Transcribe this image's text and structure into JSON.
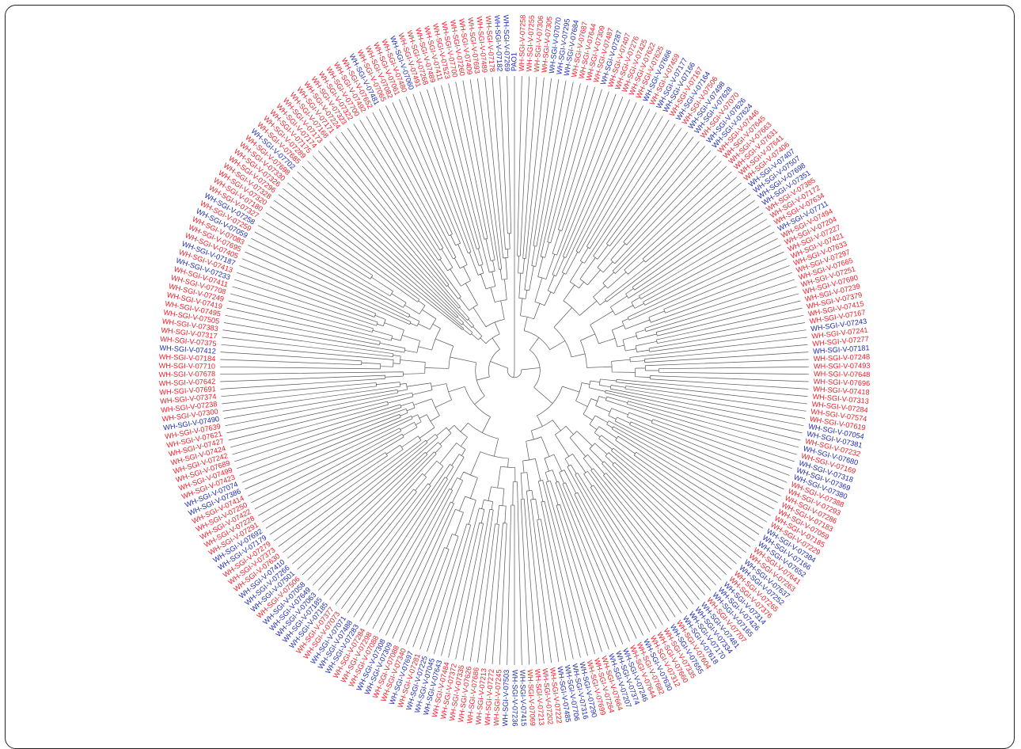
{
  "tree": {
    "root_label": "PAO1",
    "colors": {
      "red_group": "#e8202a",
      "blue_group": "#1f2ab0",
      "branch": "#555555",
      "frame": "#222222"
    },
    "leaves": [
      {
        "label": "PAO1",
        "group": "blue"
      },
      {
        "label": "WH-SGI-V-07258",
        "group": "red"
      },
      {
        "label": "WH-SGI-V-07255",
        "group": "red"
      },
      {
        "label": "WH-SGI-V-07306",
        "group": "red"
      },
      {
        "label": "WH-SGI-V-07305",
        "group": "red"
      },
      {
        "label": "WH-SGI-V-07070",
        "group": "blue"
      },
      {
        "label": "WH-SGI-V-07295",
        "group": "blue"
      },
      {
        "label": "WH-SGI-V-07684",
        "group": "blue"
      },
      {
        "label": "WH-SGI-V-07687",
        "group": "red"
      },
      {
        "label": "WH-SGI-V-07644",
        "group": "red"
      },
      {
        "label": "WH-SGI-V-07309",
        "group": "red"
      },
      {
        "label": "WH-SGI-V-07487",
        "group": "red"
      },
      {
        "label": "WH-SGI-V-07287",
        "group": "blue"
      },
      {
        "label": "WH-SGI-V-07407",
        "group": "red"
      },
      {
        "label": "WH-SGI-V-07276",
        "group": "red"
      },
      {
        "label": "WH-SGI-V-07425",
        "group": "red"
      },
      {
        "label": "WH-SGI-V-07622",
        "group": "red"
      },
      {
        "label": "WH-SGI-V-07625",
        "group": "red"
      },
      {
        "label": "WH-SGI-V-07666",
        "group": "blue"
      },
      {
        "label": "WH-SGI-V-07459",
        "group": "red"
      },
      {
        "label": "WH-SGI-V-07177",
        "group": "blue"
      },
      {
        "label": "WH-SGI-V-07166",
        "group": "blue"
      },
      {
        "label": "WH-SGI-V-07167",
        "group": "red"
      },
      {
        "label": "WH-SGI-V-07164",
        "group": "blue"
      },
      {
        "label": "WH-SGI-V-07506",
        "group": "red"
      },
      {
        "label": "WH-SGI-V-07498",
        "group": "blue"
      },
      {
        "label": "WH-SGI-V-07628",
        "group": "blue"
      },
      {
        "label": "WH-SGI-V-07070",
        "group": "red"
      },
      {
        "label": "WH-SGI-V-07626",
        "group": "blue"
      },
      {
        "label": "WH-SGI-V-07624",
        "group": "blue"
      },
      {
        "label": "WH-SGI-V-07446",
        "group": "red"
      },
      {
        "label": "WH-SGI-V-07645",
        "group": "red"
      },
      {
        "label": "WH-SGI-V-07663",
        "group": "red"
      },
      {
        "label": "WH-SGI-V-07631",
        "group": "red"
      },
      {
        "label": "WH-SGI-V-07641",
        "group": "red"
      },
      {
        "label": "WH-SGI-V-07406",
        "group": "red"
      },
      {
        "label": "WH-SGI-V-07407",
        "group": "blue"
      },
      {
        "label": "WH-SGI-V-07507",
        "group": "blue"
      },
      {
        "label": "WH-SGI-V-07698",
        "group": "blue"
      },
      {
        "label": "WH-SGI-V-07351",
        "group": "blue"
      },
      {
        "label": "WH-SGI-V-07385",
        "group": "red"
      },
      {
        "label": "WH-SGI-V-07172",
        "group": "red"
      },
      {
        "label": "WH-SGI-V-07634",
        "group": "red"
      },
      {
        "label": "WH-SGI-V-07711",
        "group": "blue"
      },
      {
        "label": "WH-SGI-V-07494",
        "group": "red"
      },
      {
        "label": "WH-SGI-V-07204",
        "group": "red"
      },
      {
        "label": "WH-SGI-V-07227",
        "group": "red"
      },
      {
        "label": "WH-SGI-V-07421",
        "group": "red"
      },
      {
        "label": "WH-SGI-V-07633",
        "group": "red"
      },
      {
        "label": "WH-SGI-V-07297",
        "group": "red"
      },
      {
        "label": "WH-SGI-V-07665",
        "group": "red"
      },
      {
        "label": "WH-SGI-V-07251",
        "group": "red"
      },
      {
        "label": "WH-SGI-V-07690",
        "group": "red"
      },
      {
        "label": "WH-SGI-V-07239",
        "group": "red"
      },
      {
        "label": "WH-SGI-V-07379",
        "group": "red"
      },
      {
        "label": "WH-SGI-V-07415",
        "group": "red"
      },
      {
        "label": "WH-SGI-V-07167",
        "group": "red"
      },
      {
        "label": "WH-SGI-V-07243",
        "group": "blue"
      },
      {
        "label": "WH-SGI-V-07241",
        "group": "red"
      },
      {
        "label": "WH-SGI-V-07277",
        "group": "red"
      },
      {
        "label": "WH-SGI-V-07181",
        "group": "blue"
      },
      {
        "label": "WH-SGI-V-07248",
        "group": "red"
      },
      {
        "label": "WH-SGI-V-07493",
        "group": "red"
      },
      {
        "label": "WH-SGI-V-07648",
        "group": "red"
      },
      {
        "label": "WH-SGI-V-07696",
        "group": "red"
      },
      {
        "label": "WH-SGI-V-07418",
        "group": "red"
      },
      {
        "label": "WH-SGI-V-07313",
        "group": "red"
      },
      {
        "label": "WH-SGI-V-07284",
        "group": "red"
      },
      {
        "label": "WH-SGI-V-07574",
        "group": "red"
      },
      {
        "label": "WH-SGI-V-07619",
        "group": "red"
      },
      {
        "label": "WH-SGI-V-07054",
        "group": "blue"
      },
      {
        "label": "WH-SGI-V-07381",
        "group": "blue"
      },
      {
        "label": "WH-SGI-V-07232",
        "group": "red"
      },
      {
        "label": "WH-SGI-V-07680",
        "group": "blue"
      },
      {
        "label": "WH-SGI-V-07169",
        "group": "red"
      },
      {
        "label": "WH-SGI-V-07318",
        "group": "blue"
      },
      {
        "label": "WH-SGI-V-07369",
        "group": "blue"
      },
      {
        "label": "WH-SGI-V-07380",
        "group": "blue"
      },
      {
        "label": "WH-SGI-V-07388",
        "group": "red"
      },
      {
        "label": "WH-SGI-V-07293",
        "group": "red"
      },
      {
        "label": "WH-SGI-V-07286",
        "group": "red"
      },
      {
        "label": "WH-SGI-V-07183",
        "group": "red"
      },
      {
        "label": "WH-SGI-V-07059",
        "group": "red"
      },
      {
        "label": "WH-SGI-V-07185",
        "group": "red"
      },
      {
        "label": "WH-SGI-V-07229",
        "group": "red"
      },
      {
        "label": "WH-SGI-V-07384",
        "group": "blue"
      },
      {
        "label": "WH-SGI-V-07166",
        "group": "blue"
      },
      {
        "label": "WH-SGI-V-07652",
        "group": "blue"
      },
      {
        "label": "WH-SGI-V-07641",
        "group": "red"
      },
      {
        "label": "WH-SGI-V-07263",
        "group": "red"
      },
      {
        "label": "WH-SGI-V-07637",
        "group": "blue"
      },
      {
        "label": "WH-SGI-V-07252",
        "group": "blue"
      },
      {
        "label": "WH-SGI-V-07265",
        "group": "red"
      },
      {
        "label": "WH-SGI-V-07376",
        "group": "red"
      },
      {
        "label": "WH-SGI-V-07314",
        "group": "blue"
      },
      {
        "label": "WH-SGI-V-07426",
        "group": "blue"
      },
      {
        "label": "WH-SGI-V-07165",
        "group": "blue"
      },
      {
        "label": "WH-SGI-V-07707",
        "group": "red"
      },
      {
        "label": "WH-SGI-V-07481",
        "group": "blue"
      },
      {
        "label": "WH-SGI-V-07334",
        "group": "blue"
      },
      {
        "label": "WH-SGI-V-07170",
        "group": "blue"
      },
      {
        "label": "WH-SGI-V-07618",
        "group": "blue"
      },
      {
        "label": "WH-SGI-V-07604",
        "group": "red"
      },
      {
        "label": "WH-SGI-V-07655",
        "group": "blue"
      },
      {
        "label": "WH-SGI-V-07335",
        "group": "red"
      },
      {
        "label": "WH-SGI-V-07660",
        "group": "red"
      },
      {
        "label": "WH-SGI-V-07312",
        "group": "red"
      },
      {
        "label": "WH-SGI-V-07630",
        "group": "blue"
      },
      {
        "label": "WH-SGI-V-07682",
        "group": "red"
      },
      {
        "label": "WH-SGI-V-07644",
        "group": "red"
      },
      {
        "label": "WH-SGI-V-07246",
        "group": "blue"
      },
      {
        "label": "WH-SGI-V-07374",
        "group": "blue"
      },
      {
        "label": "WH-SGI-V-07207",
        "group": "blue"
      },
      {
        "label": "WH-SGI-V-07664",
        "group": "red"
      },
      {
        "label": "WH-SGI-V-07264",
        "group": "red"
      },
      {
        "label": "WH-SGI-V-07699",
        "group": "red"
      },
      {
        "label": "WH-SGI-V-07290",
        "group": "blue"
      },
      {
        "label": "WH-SGI-V-07316",
        "group": "blue"
      },
      {
        "label": "WH-SGI-V-07706",
        "group": "blue"
      },
      {
        "label": "WH-SGI-V-07485",
        "group": "blue"
      },
      {
        "label": "WH-SGI-V-07222",
        "group": "red"
      },
      {
        "label": "WH-SGI-V-07202",
        "group": "red"
      },
      {
        "label": "WH-SGI-V-07213",
        "group": "red"
      },
      {
        "label": "WH-SGI-V-07069",
        "group": "red"
      },
      {
        "label": "WH-SGI-V-07415",
        "group": "blue"
      },
      {
        "label": "WH-SGI-V-07236",
        "group": "blue"
      },
      {
        "label": "WH-SGI-V-07503",
        "group": "blue"
      },
      {
        "label": "WH-SGI-V-07245",
        "group": "red"
      },
      {
        "label": "WH-SGI-V-07272",
        "group": "red"
      },
      {
        "label": "WH-SGI-V-07213",
        "group": "red"
      },
      {
        "label": "WH-SGI-V-07686",
        "group": "red"
      },
      {
        "label": "WH-SGI-V-07626",
        "group": "red"
      },
      {
        "label": "WH-SGI-V-07335",
        "group": "red"
      },
      {
        "label": "WH-SGI-V-07372",
        "group": "red"
      },
      {
        "label": "WH-SGI-V-07484",
        "group": "red"
      },
      {
        "label": "WH-SGI-V-07643",
        "group": "blue"
      },
      {
        "label": "WH-SGI-V-07045",
        "group": "blue"
      },
      {
        "label": "WH-SGI-V-07225",
        "group": "blue"
      },
      {
        "label": "WH-SGI-V-07281",
        "group": "red"
      },
      {
        "label": "WH-SGI-V-07697",
        "group": "blue"
      },
      {
        "label": "WH-SGI-V-07340",
        "group": "red"
      },
      {
        "label": "WH-SGI-V-07088",
        "group": "red"
      },
      {
        "label": "WH-SGI-V-07309",
        "group": "blue"
      },
      {
        "label": "WH-SGI-V-07308",
        "group": "blue"
      },
      {
        "label": "WH-SGI-V-07088",
        "group": "red"
      },
      {
        "label": "WH-SGI-V-07298",
        "group": "red"
      },
      {
        "label": "WH-SGI-V-07284",
        "group": "red"
      },
      {
        "label": "WH-SGI-V-07283",
        "group": "blue"
      },
      {
        "label": "WH-SGI-V-07488",
        "group": "blue"
      },
      {
        "label": "WH-SGI-V-07071",
        "group": "blue"
      },
      {
        "label": "WH-SGI-V-07073",
        "group": "red"
      },
      {
        "label": "WH-SGI-V-07377",
        "group": "red"
      },
      {
        "label": "WH-SGI-V-07185",
        "group": "blue"
      },
      {
        "label": "WH-SGI-V-07185",
        "group": "blue"
      },
      {
        "label": "WH-SGI-V-07063",
        "group": "blue"
      },
      {
        "label": "WH-SGI-V-07649",
        "group": "blue"
      },
      {
        "label": "WH-SGI-V-07058",
        "group": "blue"
      },
      {
        "label": "WH-SGI-V-07506",
        "group": "red"
      },
      {
        "label": "WH-SGI-V-07501",
        "group": "blue"
      },
      {
        "label": "WH-SGI-V-07266",
        "group": "blue"
      },
      {
        "label": "WH-SGI-V-07410",
        "group": "blue"
      },
      {
        "label": "WH-SGI-V-07630",
        "group": "red"
      },
      {
        "label": "WH-SGI-V-07373",
        "group": "red"
      },
      {
        "label": "WH-SGI-V-07279",
        "group": "red"
      },
      {
        "label": "WH-SGI-V-07179",
        "group": "blue"
      },
      {
        "label": "WH-SGI-V-07692",
        "group": "blue"
      },
      {
        "label": "WH-SGI-V-07291",
        "group": "red"
      },
      {
        "label": "WH-SGI-V-07228",
        "group": "red"
      },
      {
        "label": "WH-SGI-V-07422",
        "group": "red"
      },
      {
        "label": "WH-SGI-V-07250",
        "group": "red"
      },
      {
        "label": "WH-SGI-V-07414",
        "group": "red"
      },
      {
        "label": "WH-SGI-V-07386",
        "group": "blue"
      },
      {
        "label": "WH-SGI-V-07074",
        "group": "blue"
      },
      {
        "label": "WH-SGI-V-07423",
        "group": "red"
      },
      {
        "label": "WH-SGI-V-07499",
        "group": "red"
      },
      {
        "label": "WH-SGI-V-07689",
        "group": "red"
      },
      {
        "label": "WH-SGI-V-07242",
        "group": "red"
      },
      {
        "label": "WH-SGI-V-07424",
        "group": "red"
      },
      {
        "label": "WH-SGI-V-07427",
        "group": "red"
      },
      {
        "label": "WH-SGI-V-07621",
        "group": "red"
      },
      {
        "label": "WH-SGI-V-07639",
        "group": "red"
      },
      {
        "label": "WH-SGI-V-07490",
        "group": "blue"
      },
      {
        "label": "WH-SGI-V-07300",
        "group": "red"
      },
      {
        "label": "WH-SGI-V-07238",
        "group": "red"
      },
      {
        "label": "WH-SGI-V-07374",
        "group": "red"
      },
      {
        "label": "WH-SGI-V-07691",
        "group": "red"
      },
      {
        "label": "WH-SGI-V-07642",
        "group": "red"
      },
      {
        "label": "WH-SGI-V-07678",
        "group": "red"
      },
      {
        "label": "WH-SGI-V-07710",
        "group": "red"
      },
      {
        "label": "WH-SGI-V-07184",
        "group": "red"
      },
      {
        "label": "WH-SGI-V-07412",
        "group": "blue"
      },
      {
        "label": "WH-SGI-V-07375",
        "group": "red"
      },
      {
        "label": "WH-SGI-V-07317",
        "group": "red"
      },
      {
        "label": "WH-SGI-V-07383",
        "group": "red"
      },
      {
        "label": "WH-SGI-V-07505",
        "group": "red"
      },
      {
        "label": "WH-SGI-V-07495",
        "group": "red"
      },
      {
        "label": "WH-SGI-V-07419",
        "group": "red"
      },
      {
        "label": "WH-SGI-V-07249",
        "group": "red"
      },
      {
        "label": "WH-SGI-V-07708",
        "group": "red"
      },
      {
        "label": "WH-SGI-V-07411",
        "group": "red"
      },
      {
        "label": "WH-SGI-V-07233",
        "group": "blue"
      },
      {
        "label": "WH-SGI-V-07413",
        "group": "red"
      },
      {
        "label": "WH-SGI-V-07187",
        "group": "blue"
      },
      {
        "label": "WH-SGI-V-07405",
        "group": "red"
      },
      {
        "label": "WH-SGI-V-07695",
        "group": "red"
      },
      {
        "label": "WH-SGI-V-07083",
        "group": "red"
      },
      {
        "label": "WH-SGI-V-07059",
        "group": "blue"
      },
      {
        "label": "WH-SGI-V-07259",
        "group": "red"
      },
      {
        "label": "WH-SGI-V-07258",
        "group": "blue"
      },
      {
        "label": "WH-SGI-V-07327",
        "group": "red"
      },
      {
        "label": "WH-SGI-V-07180",
        "group": "red"
      },
      {
        "label": "WH-SGI-V-07320",
        "group": "red"
      },
      {
        "label": "WH-SGI-V-07328",
        "group": "red"
      },
      {
        "label": "WH-SGI-V-07296",
        "group": "red"
      },
      {
        "label": "WH-SGI-V-07326",
        "group": "red"
      },
      {
        "label": "WH-SGI-V-07330",
        "group": "red"
      },
      {
        "label": "WH-SGI-V-07698",
        "group": "red"
      },
      {
        "label": "WH-SGI-V-07702",
        "group": "blue"
      },
      {
        "label": "WH-SGI-V-07685",
        "group": "red"
      },
      {
        "label": "WH-SGI-V-07289",
        "group": "red"
      },
      {
        "label": "WH-SGI-V-07175",
        "group": "red"
      },
      {
        "label": "WH-SGI-V-07174",
        "group": "red"
      },
      {
        "label": "WH-SGI-V-07173",
        "group": "red"
      },
      {
        "label": "WH-SGI-V-07168",
        "group": "red"
      },
      {
        "label": "WH-SGI-V-07171",
        "group": "red"
      },
      {
        "label": "WH-SGI-V-07224",
        "group": "red"
      },
      {
        "label": "WH-SGI-V-07323",
        "group": "red"
      },
      {
        "label": "WH-SGI-V-07322",
        "group": "red"
      },
      {
        "label": "WH-SGI-V-07700",
        "group": "red"
      },
      {
        "label": "WH-SGI-V-07492",
        "group": "red"
      },
      {
        "label": "WH-SGI-V-07652",
        "group": "red"
      },
      {
        "label": "WH-SGI-V-07481",
        "group": "blue"
      },
      {
        "label": "WH-SGI-V-07065",
        "group": "red"
      },
      {
        "label": "WH-SGI-V-07082",
        "group": "red"
      },
      {
        "label": "WH-SGI-V-07061",
        "group": "red"
      },
      {
        "label": "WH-SGI-V-07480",
        "group": "red"
      },
      {
        "label": "WH-SGI-V-07060",
        "group": "blue"
      },
      {
        "label": "WH-SGI-V-07491",
        "group": "red"
      },
      {
        "label": "WH-SGI-V-07268",
        "group": "red"
      },
      {
        "label": "WH-SGI-V-07489",
        "group": "red"
      },
      {
        "label": "WH-SGI-V-07411",
        "group": "red"
      },
      {
        "label": "WH-SGI-V-07523",
        "group": "red"
      },
      {
        "label": "WH-SGI-V-07700",
        "group": "red"
      },
      {
        "label": "WH-SGI-V-07260",
        "group": "red"
      },
      {
        "label": "WH-SGI-V-07409",
        "group": "red"
      },
      {
        "label": "WH-SGI-V-07693",
        "group": "red"
      },
      {
        "label": "WH-SGI-V-07489",
        "group": "red"
      },
      {
        "label": "WH-SGI-V-07178",
        "group": "red"
      },
      {
        "label": "WH-SGI-V-07182",
        "group": "blue"
      },
      {
        "label": "WH-SGI-V-07269",
        "group": "blue"
      }
    ]
  }
}
